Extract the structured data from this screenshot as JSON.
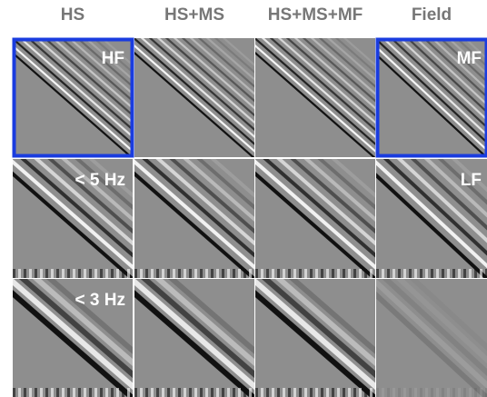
{
  "headers": [
    "HS",
    "HS+MS",
    "HS+MS+MF",
    "Field"
  ],
  "panel_labels": {
    "hf": "HF",
    "mf": "MF",
    "lowpass_5hz": "< 5 Hz",
    "lf": "LF",
    "lowpass_3hz": "< 3 Hz"
  }
}
